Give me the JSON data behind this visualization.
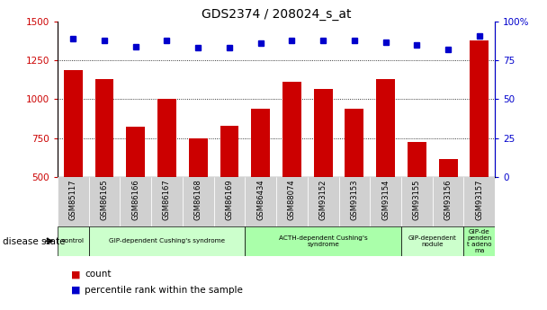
{
  "title": "GDS2374 / 208024_s_at",
  "samples": [
    "GSM85117",
    "GSM86165",
    "GSM86166",
    "GSM86167",
    "GSM86168",
    "GSM86169",
    "GSM86434",
    "GSM88074",
    "GSM93152",
    "GSM93153",
    "GSM93154",
    "GSM93155",
    "GSM93156",
    "GSM93157"
  ],
  "counts": [
    1190,
    1130,
    820,
    1005,
    750,
    830,
    940,
    1115,
    1065,
    940,
    1130,
    725,
    615,
    1380
  ],
  "percentiles": [
    89,
    88,
    84,
    88,
    83,
    83,
    86,
    88,
    88,
    88,
    87,
    85,
    82,
    91
  ],
  "ylim_left": [
    500,
    1500
  ],
  "ylim_right": [
    0,
    100
  ],
  "yticks_left": [
    500,
    750,
    1000,
    1250,
    1500
  ],
  "yticks_right": [
    0,
    25,
    50,
    75,
    100
  ],
  "bar_color": "#cc0000",
  "dot_color": "#0000cc",
  "bar_width": 0.6,
  "disease_groups": [
    {
      "label": "control",
      "start": 0,
      "end": 1,
      "color": "#ccffcc"
    },
    {
      "label": "GIP-dependent Cushing's syndrome",
      "start": 1,
      "end": 6,
      "color": "#ccffcc"
    },
    {
      "label": "ACTH-dependent Cushing's\nsyndrome",
      "start": 6,
      "end": 11,
      "color": "#aaffaa"
    },
    {
      "label": "GIP-dependent\nnodule",
      "start": 11,
      "end": 13,
      "color": "#ccffcc"
    },
    {
      "label": "GIP-de\npenden\nt adeno\nma",
      "start": 13,
      "end": 14,
      "color": "#aaffaa"
    }
  ],
  "tick_bg_color": "#d0d0d0",
  "ylabel_left_color": "#cc0000",
  "ylabel_right_color": "#0000cc",
  "title_fontsize": 10,
  "legend_fontsize": 8,
  "sample_fontsize": 6
}
